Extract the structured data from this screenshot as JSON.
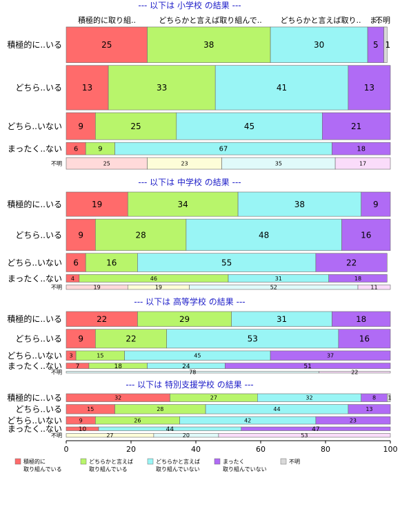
{
  "chart_data": {
    "type": "bar",
    "orientation": "horizontal-stacked-mosaic",
    "xlim": [
      0,
      100
    ],
    "x_ticks": [
      "0",
      "20",
      "40",
      "60",
      "80",
      "100"
    ],
    "grid": false,
    "legend_position": "bottom",
    "column_headers": [
      "積極的に取り組..",
      "どちらかと言えば取り組んで..",
      "どちらかと言えば取り..",
      "ま..",
      "不明"
    ],
    "series": [
      {
        "name": "積極的に\n取り組んでいる",
        "color": "#ff6b6b"
      },
      {
        "name": "どちらかと言えば\n取り組んでいる",
        "color": "#b8f56b"
      },
      {
        "name": "どちらかと言えば\n取り組んでいない",
        "color": "#99f5f5"
      },
      {
        "name": "まったく\n取り組んでいない",
        "color": "#b06bf5"
      },
      {
        "name": "不明",
        "color": "#d9d9d9"
      }
    ],
    "light_colors": [
      "#ffdada",
      "#fdfdd8",
      "#e0fafa",
      "#fadcfa"
    ],
    "panels": [
      {
        "title": "--- 以下は 小学校 の結果 ---",
        "rows": [
          {
            "label": "積極的に..いる",
            "share": 0.245,
            "values": [
              25,
              38,
              30,
              5,
              1
            ]
          },
          {
            "label": "どちら..いる",
            "share": 0.305,
            "values": [
              13,
              33,
              41,
              13,
              1
            ]
          },
          {
            "label": "どちら..いない",
            "share": 0.185,
            "values": [
              9,
              25,
              45,
              21,
              0
            ]
          },
          {
            "label": "まったく..ない",
            "share": 0.085,
            "values": [
              6,
              9,
              67,
              18,
              0
            ]
          },
          {
            "label": "不明",
            "share": 0.08,
            "values": [
              25,
              23,
              35,
              17,
              0
            ],
            "light": true
          }
        ]
      },
      {
        "title": "--- 以下は 中学校 の結果 ---",
        "rows": [
          {
            "label": "積極的に..いる",
            "share": 0.27,
            "values": [
              19,
              34,
              38,
              9,
              1
            ]
          },
          {
            "label": "どちら..いる",
            "share": 0.35,
            "values": [
              9,
              28,
              48,
              16,
              0
            ]
          },
          {
            "label": "どちら..いない",
            "share": 0.205,
            "values": [
              6,
              16,
              55,
              22,
              0
            ]
          },
          {
            "label": "まったく..ない",
            "share": 0.085,
            "values": [
              4,
              46,
              31,
              18,
              0
            ]
          },
          {
            "label": "不明",
            "share": 0.05,
            "values": [
              19,
              19,
              52,
              11,
              0
            ],
            "light": true
          }
        ]
      },
      {
        "title": "--- 以下は 高等学校 の結果 ---",
        "rows": [
          {
            "label": "積極的に..いる",
            "share": 0.27,
            "values": [
              22,
              29,
              31,
              18,
              0
            ]
          },
          {
            "label": "どちら..いる",
            "share": 0.34,
            "values": [
              9,
              22,
              53,
              16,
              0
            ]
          },
          {
            "label": "どちら..いない",
            "share": 0.17,
            "values": [
              3,
              15,
              45,
              37,
              0
            ]
          },
          {
            "label": "まったく..ない",
            "share": 0.1,
            "values": [
              7,
              18,
              24,
              51,
              0
            ],
            "small": true
          },
          {
            "label": "不明",
            "share": 0.03,
            "values": [
              0,
              0,
              78,
              22,
              0
            ],
            "light": true
          }
        ]
      },
      {
        "title": "--- 以下は 特別支援学校 の結果 ---",
        "rows": [
          {
            "label": "積極的に..いる",
            "share": 0.2,
            "values": [
              32,
              27,
              32,
              8,
              1
            ]
          },
          {
            "label": "どちら..いる",
            "share": 0.235,
            "values": [
              15,
              28,
              44,
              13,
              0
            ]
          },
          {
            "label": "どちら..いない",
            "share": 0.19,
            "values": [
              9,
              26,
              42,
              23,
              0
            ]
          },
          {
            "label": "まったく..ない",
            "share": 0.095,
            "values": [
              10,
              0,
              44,
              47,
              0
            ],
            "small": true
          },
          {
            "label": "不明",
            "share": 0.095,
            "values": [
              0,
              27,
              20,
              53,
              0
            ],
            "light": true
          }
        ]
      }
    ]
  }
}
